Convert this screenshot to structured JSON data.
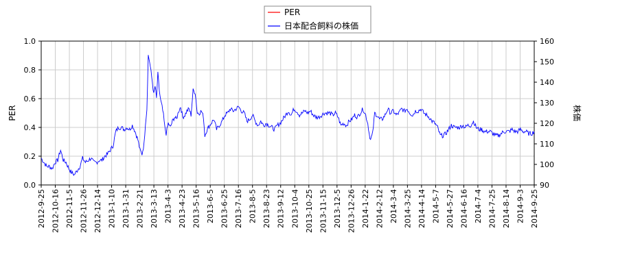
{
  "chart_data": {
    "type": "line",
    "x_ticks": [
      "2012-9-25",
      "2012-10-16",
      "2012-11-5",
      "2012-11-26",
      "2012-12-14",
      "2013-1-10",
      "2013-1-31",
      "2013-2-21",
      "2013-3-13",
      "2013-4-3",
      "2013-4-23",
      "2013-5-16",
      "2013-6-5",
      "2013-6-25",
      "2013-7-16",
      "2013-8-5",
      "2013-8-23",
      "2013-9-12",
      "2013-10-4",
      "2013-10-25",
      "2013-11-15",
      "2013-12-5",
      "2013-12-26",
      "2014-1-22",
      "2014-2-12",
      "2014-3-4",
      "2014-3-25",
      "2014-4-14",
      "2014-5-7",
      "2014-5-27",
      "2014-6-16",
      "2014-7-4",
      "2014-7-25",
      "2014-8-14",
      "2014-9-3",
      "2014-9-25"
    ],
    "y_left": {
      "label": "PER",
      "ylim": [
        0,
        1.0
      ],
      "ticks": [
        "0.0",
        "0.2",
        "0.4",
        "0.6",
        "0.8",
        "1.0"
      ]
    },
    "y_right": {
      "label": "株価",
      "ylim": [
        90,
        160
      ],
      "ticks": [
        "90",
        "100",
        "110",
        "120",
        "130",
        "140",
        "150",
        "160"
      ]
    },
    "grid": true,
    "legend_placement": "top-center",
    "series": [
      {
        "name": "PER",
        "axis": "left",
        "color": "#ff0000",
        "values": []
      },
      {
        "name": "日本配合飼料の株価",
        "axis": "right",
        "color": "#0000ff",
        "keypoints": [
          [
            0,
            103
          ],
          [
            4,
            101
          ],
          [
            8,
            99
          ],
          [
            12,
            99
          ],
          [
            16,
            98
          ],
          [
            20,
            101
          ],
          [
            24,
            102
          ],
          [
            28,
            107
          ],
          [
            32,
            102
          ],
          [
            36,
            101
          ],
          [
            40,
            98
          ],
          [
            44,
            96
          ],
          [
            48,
            95
          ],
          [
            52,
            97
          ],
          [
            56,
            99
          ],
          [
            60,
            103
          ],
          [
            64,
            101
          ],
          [
            68,
            102
          ],
          [
            72,
            103
          ],
          [
            76,
            101
          ],
          [
            80,
            101
          ],
          [
            84,
            102
          ],
          [
            88,
            102
          ],
          [
            92,
            104
          ],
          [
            96,
            105
          ],
          [
            100,
            107
          ],
          [
            104,
            109
          ],
          [
            108,
            116
          ],
          [
            112,
            118
          ],
          [
            116,
            118
          ],
          [
            120,
            117
          ],
          [
            124,
            118
          ],
          [
            128,
            117
          ],
          [
            132,
            119
          ],
          [
            136,
            116
          ],
          [
            140,
            112
          ],
          [
            143,
            107
          ],
          [
            146,
            105
          ],
          [
            149,
            110
          ],
          [
            151,
            120
          ],
          [
            153,
            127
          ],
          [
            155,
            153
          ],
          [
            157,
            150
          ],
          [
            159,
            145
          ],
          [
            161,
            140
          ],
          [
            163,
            134
          ],
          [
            165,
            138
          ],
          [
            167,
            132
          ],
          [
            169,
            144
          ],
          [
            171,
            136
          ],
          [
            173,
            131
          ],
          [
            175,
            128
          ],
          [
            177,
            124
          ],
          [
            179,
            118
          ],
          [
            181,
            115
          ],
          [
            184,
            120
          ],
          [
            187,
            118
          ],
          [
            190,
            121
          ],
          [
            193,
            123
          ],
          [
            196,
            122
          ],
          [
            199,
            126
          ],
          [
            202,
            128
          ],
          [
            205,
            123
          ],
          [
            208,
            124
          ],
          [
            211,
            126
          ],
          [
            214,
            127
          ],
          [
            217,
            124
          ],
          [
            220,
            136
          ],
          [
            223,
            135
          ],
          [
            226,
            125
          ],
          [
            229,
            125
          ],
          [
            232,
            126
          ],
          [
            235,
            123
          ],
          [
            237,
            114
          ],
          [
            239,
            116
          ],
          [
            242,
            118
          ],
          [
            246,
            120
          ],
          [
            250,
            122
          ],
          [
            254,
            117
          ],
          [
            258,
            119
          ],
          [
            262,
            121
          ],
          [
            266,
            124
          ],
          [
            270,
            125
          ],
          [
            274,
            127
          ],
          [
            278,
            126
          ],
          [
            282,
            127
          ],
          [
            286,
            128
          ],
          [
            290,
            126
          ],
          [
            294,
            125
          ],
          [
            298,
            121
          ],
          [
            302,
            122
          ],
          [
            306,
            124
          ],
          [
            310,
            121
          ],
          [
            314,
            119
          ],
          [
            318,
            121
          ],
          [
            322,
            119
          ],
          [
            326,
            120
          ],
          [
            330,
            119
          ],
          [
            334,
            118
          ],
          [
            338,
            117
          ],
          [
            342,
            119
          ],
          [
            346,
            120
          ],
          [
            350,
            122
          ],
          [
            354,
            124
          ],
          [
            358,
            126
          ],
          [
            362,
            124
          ],
          [
            366,
            127
          ],
          [
            370,
            126
          ],
          [
            374,
            124
          ],
          [
            378,
            125
          ],
          [
            382,
            126
          ],
          [
            386,
            125
          ],
          [
            390,
            126
          ],
          [
            394,
            124
          ],
          [
            398,
            123
          ],
          [
            402,
            123
          ],
          [
            406,
            124
          ],
          [
            410,
            125
          ],
          [
            414,
            125
          ],
          [
            418,
            125
          ],
          [
            422,
            124
          ],
          [
            426,
            125
          ],
          [
            430,
            123
          ],
          [
            434,
            119
          ],
          [
            438,
            120
          ],
          [
            442,
            119
          ],
          [
            446,
            121
          ],
          [
            450,
            122
          ],
          [
            454,
            124
          ],
          [
            458,
            123
          ],
          [
            462,
            125
          ],
          [
            466,
            127
          ],
          [
            470,
            124
          ],
          [
            473,
            120
          ],
          [
            475,
            115
          ],
          [
            477,
            112
          ],
          [
            480,
            115
          ],
          [
            483,
            125
          ],
          [
            486,
            124
          ],
          [
            490,
            122
          ],
          [
            494,
            122
          ],
          [
            498,
            124
          ],
          [
            502,
            127
          ],
          [
            506,
            125
          ],
          [
            510,
            126
          ],
          [
            514,
            124
          ],
          [
            518,
            125
          ],
          [
            522,
            127
          ],
          [
            526,
            126
          ],
          [
            530,
            127
          ],
          [
            534,
            125
          ],
          [
            538,
            124
          ],
          [
            542,
            126
          ],
          [
            546,
            126
          ],
          [
            550,
            127
          ],
          [
            554,
            125
          ],
          [
            558,
            124
          ],
          [
            562,
            123
          ],
          [
            566,
            121
          ],
          [
            570,
            120
          ],
          [
            574,
            118
          ],
          [
            578,
            114
          ],
          [
            582,
            114
          ],
          [
            586,
            115
          ],
          [
            590,
            117
          ],
          [
            594,
            119
          ],
          [
            598,
            118
          ],
          [
            602,
            118
          ],
          [
            606,
            118
          ],
          [
            610,
            119
          ],
          [
            614,
            118
          ],
          [
            618,
            119
          ],
          [
            622,
            119
          ],
          [
            626,
            121
          ],
          [
            630,
            118
          ],
          [
            634,
            117
          ],
          [
            638,
            117
          ],
          [
            642,
            116
          ],
          [
            646,
            116
          ],
          [
            650,
            116
          ],
          [
            654,
            115
          ],
          [
            658,
            114
          ],
          [
            662,
            114
          ],
          [
            666,
            115
          ],
          [
            670,
            116
          ],
          [
            674,
            116
          ],
          [
            678,
            116
          ],
          [
            682,
            117
          ],
          [
            686,
            116
          ],
          [
            690,
            116
          ],
          [
            694,
            117
          ],
          [
            698,
            116
          ],
          [
            702,
            116
          ],
          [
            706,
            115
          ],
          [
            710,
            115
          ],
          [
            714,
            116
          ]
        ]
      }
    ]
  }
}
